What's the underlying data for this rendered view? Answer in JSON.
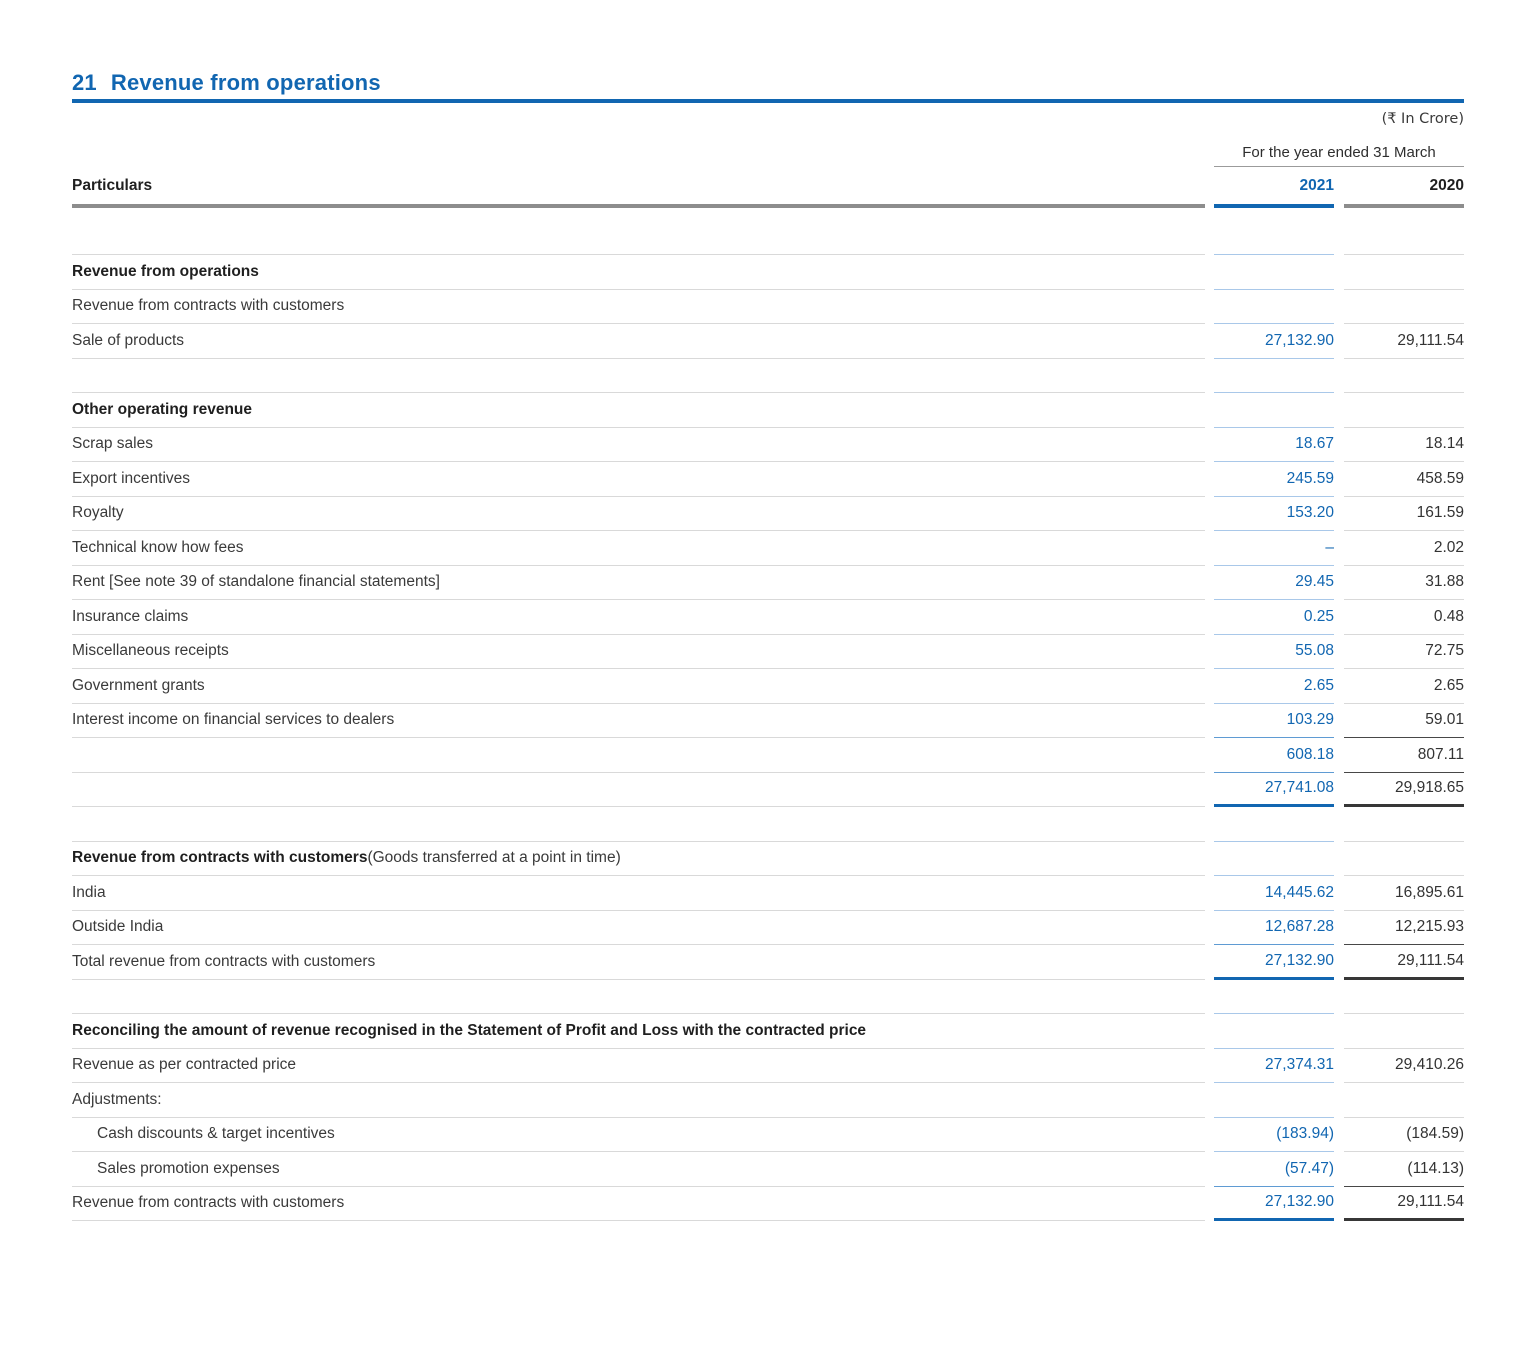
{
  "page": {
    "title_number": "21",
    "title_text": "Revenue from operations",
    "currency_note": "(₹ In Crore)",
    "period_header": "For the year ended 31 March",
    "col_particulars": "Particulars",
    "col_2021": "2021",
    "col_2020": "2020"
  },
  "colors": {
    "accent_blue": "#1166b1",
    "line_blue_light": "#a9c8e9",
    "line_blue_strong": "#5f9bd3",
    "line_gray_light": "#d9d9d9",
    "line_dark_strong": "#474747",
    "line_dark_total": "#373737",
    "header_rule_gray": "#8d8d8d",
    "period_rule_gray": "#9b9b9b",
    "text_dark": "#3a3a3a",
    "text_black": "#1f1f1f"
  },
  "table": {
    "rows": [
      {
        "spacer": true,
        "tall": true,
        "rule": "light"
      },
      {
        "label": "Revenue from operations",
        "bold": true,
        "rule": "light"
      },
      {
        "label": "Revenue from contracts with customers",
        "rule": "light"
      },
      {
        "label": "Sale of products",
        "v2021": "27,132.90",
        "v2020": "29,111.54",
        "rule": "light"
      },
      {
        "spacer": true,
        "rule": "light"
      },
      {
        "label": "Other operating revenue",
        "bold": true,
        "rule": "light"
      },
      {
        "label": "Scrap sales",
        "v2021": "18.67",
        "v2020": "18.14",
        "rule": "light"
      },
      {
        "label": "Export incentives",
        "v2021": "245.59",
        "v2020": "458.59",
        "rule": "light"
      },
      {
        "label": "Royalty",
        "v2021": "153.20",
        "v2020": "161.59",
        "rule": "light"
      },
      {
        "label": "Technical know how fees",
        "v2021": "–",
        "v2020": "2.02",
        "rule": "light"
      },
      {
        "label": "Rent [See note 39 of standalone financial statements]",
        "v2021": "29.45",
        "v2020": "31.88",
        "rule": "light"
      },
      {
        "label": "Insurance claims",
        "v2021": "0.25",
        "v2020": "0.48",
        "rule": "light"
      },
      {
        "label": "Miscellaneous receipts",
        "v2021": "55.08",
        "v2020": "72.75",
        "rule": "light"
      },
      {
        "label": "Government grants",
        "v2021": "2.65",
        "v2020": "2.65",
        "rule": "light"
      },
      {
        "label": "Interest income on financial services to dealers",
        "v2021": "103.29",
        "v2020": "59.01",
        "rule": "strong"
      },
      {
        "label": "",
        "v2021": "608.18",
        "v2020": "807.11",
        "rule": "strong"
      },
      {
        "label": "",
        "v2021": "27,741.08",
        "v2020": "29,918.65",
        "rule": "total"
      },
      {
        "spacer": true,
        "rule": "light"
      },
      {
        "label": "Revenue from contracts with customers",
        "label_suffix": " (Goods transferred at a point in time)",
        "bold": true,
        "rule": "light"
      },
      {
        "label": "India",
        "v2021": "14,445.62",
        "v2020": "16,895.61",
        "rule": "light"
      },
      {
        "label": "Outside India",
        "v2021": "12,687.28",
        "v2020": "12,215.93",
        "rule": "strong"
      },
      {
        "label": "Total revenue from contracts with customers",
        "v2021": "27,132.90",
        "v2020": "29,111.54",
        "rule": "total"
      },
      {
        "spacer": true,
        "rule": "light"
      },
      {
        "label": "Reconciling the amount of revenue recognised in the Statement of Profit and Loss with the contracted price",
        "bold": true,
        "rule": "light"
      },
      {
        "label": "Revenue as per contracted price",
        "v2021": "27,374.31",
        "v2020": "29,410.26",
        "rule": "light"
      },
      {
        "label": "Adjustments:",
        "rule": "light"
      },
      {
        "label": "Cash discounts & target incentives",
        "indent": true,
        "v2021": "(183.94)",
        "v2020": "(184.59)",
        "rule": "light"
      },
      {
        "label": "Sales promotion expenses",
        "indent": true,
        "v2021": "(57.47)",
        "v2020": "(114.13)",
        "rule": "strong"
      },
      {
        "label": "Revenue from contracts with customers",
        "v2021": "27,132.90",
        "v2020": "29,111.54",
        "rule": "total"
      }
    ]
  }
}
